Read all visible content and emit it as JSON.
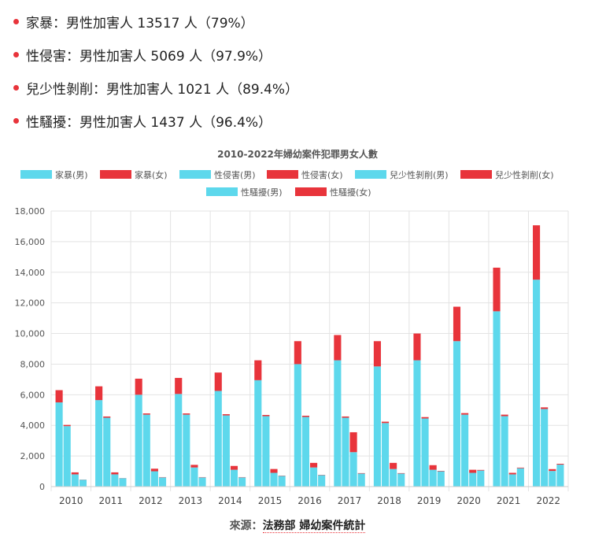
{
  "bullets": [
    {
      "text": "家暴：男性加害人 13517 人（79%）"
    },
    {
      "text": "性侵害：男性加害人 5069 人（97.9%）"
    },
    {
      "text": "兒少性剝削：男性加害人 1021 人（89.4%）"
    },
    {
      "text": "性騷擾：男性加害人 1437 人（96.4%）"
    }
  ],
  "source": {
    "label": "來源：",
    "link_text": "法務部 婦幼案件統計"
  },
  "colors": {
    "male": "#5dd8ec",
    "female": "#e8343b",
    "bullet": "#e8343b"
  },
  "chart_data": {
    "type": "bar",
    "stacked": true,
    "title": "2010-2022年婦幼案件犯罪男女人數",
    "xlabel": "",
    "ylabel": "",
    "ylim": [
      0,
      18000
    ],
    "yticks": [
      "0",
      "2,000",
      "4,000",
      "6,000",
      "8,000",
      "10,000",
      "12,000",
      "14,000",
      "16,000",
      "18,000"
    ],
    "grid": true,
    "legend_position": "top",
    "categories": [
      "2010",
      "2011",
      "2012",
      "2013",
      "2014",
      "2015",
      "2016",
      "2017",
      "2018",
      "2019",
      "2020",
      "2021",
      "2022"
    ],
    "legend": [
      "家暴(男)",
      "家暴(女)",
      "性侵害(男)",
      "性侵害(女)",
      "兒少性剝削(男)",
      "兒少性剝削(女)",
      "性騷擾(男)",
      "性騷擾(女)"
    ],
    "groups": [
      {
        "name": "家暴",
        "male": [
          5500,
          5650,
          6000,
          6050,
          6250,
          6950,
          8000,
          8250,
          7850,
          8250,
          9500,
          11450,
          13517
        ],
        "female": [
          800,
          900,
          1050,
          1050,
          1200,
          1300,
          1500,
          1650,
          1650,
          1750,
          2250,
          2850,
          3550
        ]
      },
      {
        "name": "性侵害",
        "male": [
          3950,
          4500,
          4700,
          4700,
          4650,
          4600,
          4550,
          4500,
          4150,
          4450,
          4700,
          4600,
          5069
        ],
        "female": [
          80,
          80,
          80,
          80,
          80,
          80,
          80,
          80,
          90,
          90,
          100,
          100,
          107
        ]
      },
      {
        "name": "兒少性剝削",
        "male": [
          800,
          800,
          1000,
          1250,
          1100,
          900,
          1250,
          2250,
          1150,
          1100,
          900,
          800,
          1021
        ],
        "female": [
          130,
          130,
          170,
          170,
          250,
          250,
          300,
          1300,
          400,
          300,
          200,
          100,
          121
        ]
      },
      {
        "name": "性騷擾",
        "male": [
          450,
          550,
          600,
          600,
          600,
          700,
          750,
          850,
          850,
          1000,
          1050,
          1200,
          1437
        ],
        "female": [
          10,
          10,
          20,
          20,
          20,
          20,
          20,
          30,
          30,
          30,
          40,
          40,
          53
        ]
      }
    ]
  }
}
